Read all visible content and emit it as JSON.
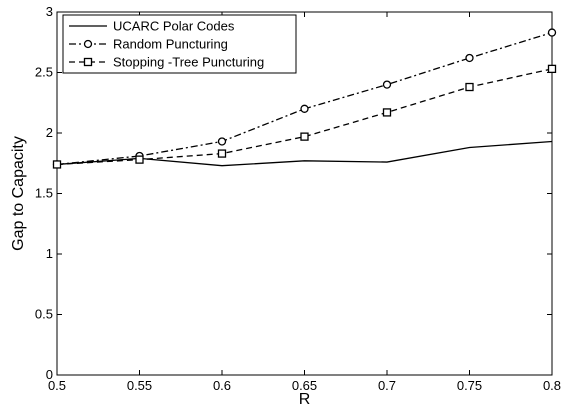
{
  "chart_data": {
    "type": "line",
    "title": "",
    "xlabel": "R",
    "ylabel": "Gap to Capacity",
    "xlim": [
      0.5,
      0.8
    ],
    "ylim": [
      0,
      3
    ],
    "grid": false,
    "legend_position": "top-left",
    "x": [
      0.5,
      0.55,
      0.6,
      0.65,
      0.7,
      0.75,
      0.8
    ],
    "x_ticks": [
      "0.5",
      "0.55",
      "0.6",
      "0.65",
      "0.7",
      "0.75",
      "0.8"
    ],
    "y_ticks": [
      "0",
      "0.5",
      "1",
      "1.5",
      "2",
      "2.5",
      "3"
    ],
    "series": [
      {
        "name": "UCARC Polar Codes",
        "values": [
          1.74,
          1.79,
          1.73,
          1.77,
          1.76,
          1.88,
          1.93
        ],
        "dash": "solid",
        "marker": "none",
        "color": "#000000"
      },
      {
        "name": "Random Puncturing",
        "values": [
          1.74,
          1.81,
          1.93,
          2.2,
          2.4,
          2.62,
          2.83
        ],
        "dash": "dashdot",
        "marker": "circle",
        "color": "#000000"
      },
      {
        "name": "Stopping -Tree Puncturing",
        "values": [
          1.74,
          1.78,
          1.83,
          1.97,
          2.17,
          2.38,
          2.53
        ],
        "dash": "dashed",
        "marker": "square",
        "color": "#000000"
      }
    ]
  }
}
